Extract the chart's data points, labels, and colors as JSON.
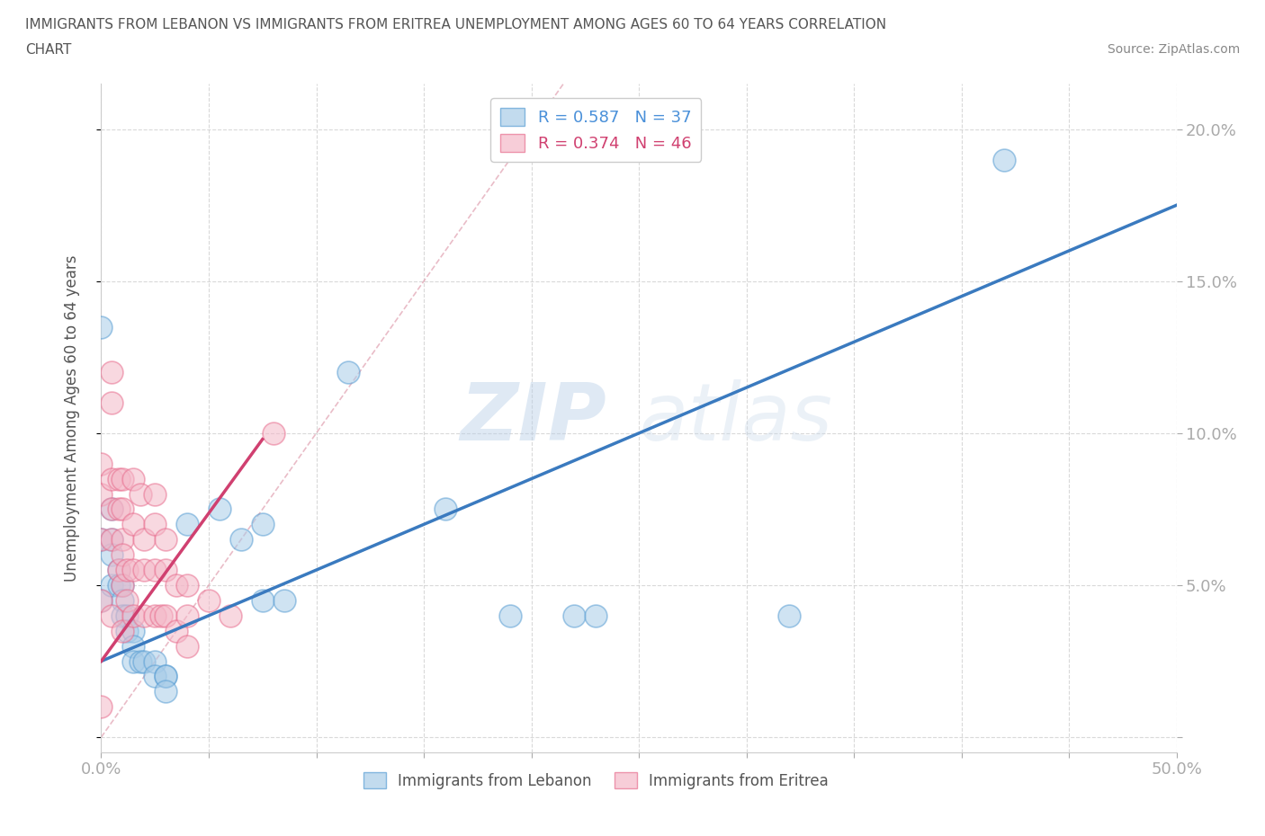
{
  "title_line1": "IMMIGRANTS FROM LEBANON VS IMMIGRANTS FROM ERITREA UNEMPLOYMENT AMONG AGES 60 TO 64 YEARS CORRELATION",
  "title_line2": "CHART",
  "source": "Source: ZipAtlas.com",
  "ylabel": "Unemployment Among Ages 60 to 64 years",
  "xlim": [
    0.0,
    0.5
  ],
  "ylim": [
    -0.005,
    0.215
  ],
  "xticks": [
    0.0,
    0.05,
    0.1,
    0.15,
    0.2,
    0.25,
    0.3,
    0.35,
    0.4,
    0.45,
    0.5
  ],
  "yticks": [
    0.0,
    0.05,
    0.1,
    0.15,
    0.2
  ],
  "lebanon_color": "#a8cce8",
  "eritrea_color": "#f4b8c8",
  "lebanon_edge": "#5b9fd4",
  "eritrea_edge": "#e87090",
  "lebanon_R": 0.587,
  "lebanon_N": 37,
  "eritrea_R": 0.374,
  "eritrea_N": 46,
  "lebanon_trend_x": [
    0.0,
    0.5
  ],
  "lebanon_trend_y": [
    0.025,
    0.175
  ],
  "eritrea_trend_x": [
    0.0,
    0.075
  ],
  "eritrea_trend_y": [
    0.025,
    0.098
  ],
  "diag_trend_x": [
    0.0,
    0.215
  ],
  "diag_trend_y": [
    0.0,
    0.215
  ],
  "watermark": "ZIPatlas",
  "lebanon_x": [
    0.0,
    0.0,
    0.0,
    0.005,
    0.005,
    0.005,
    0.005,
    0.008,
    0.008,
    0.01,
    0.01,
    0.01,
    0.012,
    0.012,
    0.015,
    0.015,
    0.015,
    0.018,
    0.02,
    0.025,
    0.025,
    0.03,
    0.03,
    0.03,
    0.04,
    0.055,
    0.065,
    0.075,
    0.075,
    0.085,
    0.115,
    0.16,
    0.19,
    0.22,
    0.23,
    0.32,
    0.42
  ],
  "lebanon_y": [
    0.135,
    0.065,
    0.045,
    0.075,
    0.065,
    0.06,
    0.05,
    0.055,
    0.05,
    0.05,
    0.045,
    0.04,
    0.04,
    0.035,
    0.035,
    0.03,
    0.025,
    0.025,
    0.025,
    0.025,
    0.02,
    0.02,
    0.02,
    0.015,
    0.07,
    0.075,
    0.065,
    0.07,
    0.045,
    0.045,
    0.12,
    0.075,
    0.04,
    0.04,
    0.04,
    0.04,
    0.19
  ],
  "eritrea_x": [
    0.0,
    0.0,
    0.0,
    0.0,
    0.0,
    0.005,
    0.005,
    0.005,
    0.005,
    0.005,
    0.005,
    0.008,
    0.008,
    0.008,
    0.01,
    0.01,
    0.01,
    0.01,
    0.01,
    0.01,
    0.012,
    0.012,
    0.015,
    0.015,
    0.015,
    0.015,
    0.018,
    0.02,
    0.02,
    0.02,
    0.025,
    0.025,
    0.025,
    0.025,
    0.028,
    0.03,
    0.03,
    0.03,
    0.035,
    0.035,
    0.04,
    0.04,
    0.04,
    0.05,
    0.06,
    0.08
  ],
  "eritrea_y": [
    0.09,
    0.08,
    0.065,
    0.045,
    0.01,
    0.12,
    0.11,
    0.085,
    0.075,
    0.065,
    0.04,
    0.085,
    0.075,
    0.055,
    0.085,
    0.075,
    0.065,
    0.06,
    0.05,
    0.035,
    0.055,
    0.045,
    0.085,
    0.07,
    0.055,
    0.04,
    0.08,
    0.065,
    0.055,
    0.04,
    0.08,
    0.07,
    0.055,
    0.04,
    0.04,
    0.065,
    0.055,
    0.04,
    0.05,
    0.035,
    0.05,
    0.04,
    0.03,
    0.045,
    0.04,
    0.1
  ]
}
